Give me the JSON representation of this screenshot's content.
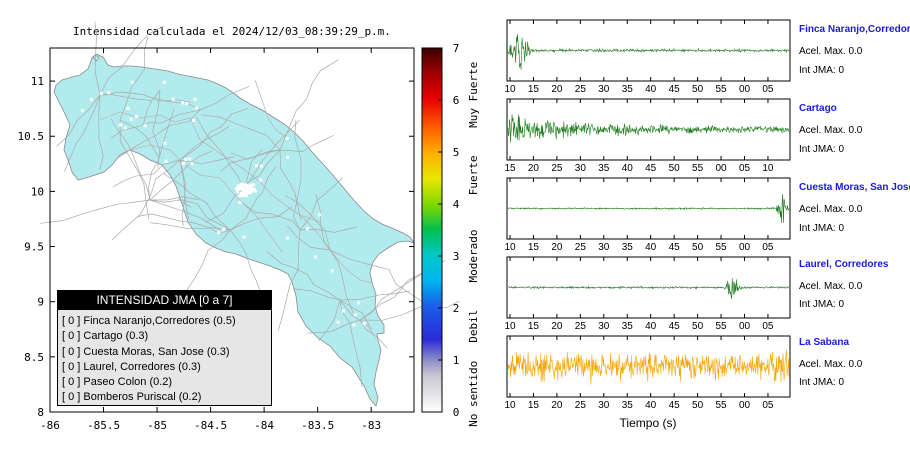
{
  "map": {
    "title": "Intensidad calculada el 2024/12/03_08:39:29_p.m.",
    "x_ticks": [
      "-86",
      "-85.5",
      "-85",
      "-84.5",
      "-84",
      "-83.5",
      "-83"
    ],
    "y_ticks": [
      "8",
      "8.5",
      "9",
      "9.5",
      "10",
      "10.5",
      "11"
    ],
    "land_color": "#b2ebed",
    "colorbar": {
      "ticks": [
        "0",
        "1",
        "2",
        "3",
        "4",
        "5",
        "6",
        "7"
      ],
      "categories": [
        "No sentido",
        "Debil",
        "Moderado",
        "Fuerte",
        "Muy Fuerte"
      ]
    }
  },
  "legend": {
    "title": "INTENSIDAD JMA [0 a 7]",
    "items": [
      "[ 0 ]  Finca Naranjo,Corredores (0.5)",
      "[ 0 ]  Cartago (0.3)",
      "[ 0 ]  Cuesta Moras, San Jose (0.3)",
      "[ 0 ]  Laurel, Corredores (0.3)",
      "[ 0 ]  Paseo Colon (0.2)",
      "[ 0 ]  Bomberos Puriscal (0.2)"
    ]
  },
  "stations": [
    {
      "name": "Finca Naranjo,Corredores",
      "accel": "Acel. Max. 0.0",
      "jma": "Int JMA: 0",
      "ticks": [
        "10",
        "15",
        "20",
        "25",
        "30",
        "35",
        "40",
        "45",
        "50",
        "55",
        "00",
        "05"
      ],
      "color": "#1a7a1a"
    },
    {
      "name": "Cartago",
      "accel": "Acel. Max. 0.0",
      "jma": "Int JMA: 0",
      "ticks": [
        "15",
        "20",
        "25",
        "30",
        "35",
        "40",
        "45",
        "50",
        "55",
        "00",
        "05",
        "10"
      ],
      "color": "#1a7a1a"
    },
    {
      "name": "Cuesta Moras, San Jose",
      "accel": "Acel. Max. 0.0",
      "jma": "Int JMA: 0",
      "ticks": [
        "10",
        "15",
        "20",
        "25",
        "30",
        "35",
        "40",
        "45",
        "50",
        "55",
        "00",
        "05"
      ],
      "color": "#1a7a1a"
    },
    {
      "name": "Laurel, Corredores",
      "accel": "Acel. Max. 0.0",
      "jma": "Int JMA: 0",
      "ticks": [
        "10",
        "15",
        "20",
        "25",
        "30",
        "35",
        "40",
        "45",
        "50",
        "55",
        "00",
        "05"
      ],
      "color": "#1a7a1a"
    },
    {
      "name": "La Sabana",
      "accel": "Acel. Max. 0.0",
      "jma": "Int JMA: 0",
      "ticks": [
        "10",
        "15",
        "20",
        "25",
        "30",
        "35",
        "40",
        "45",
        "50",
        "55",
        "00",
        "05"
      ],
      "color": "#f5a300"
    }
  ],
  "time_label": "Tiempo (s)",
  "chart_data": [
    {
      "type": "heatmap",
      "title": "Intensidad calculada el 2024/12/03_08:39:29_p.m.",
      "xlim": [
        -86,
        -82.6
      ],
      "ylim": [
        8,
        11.3
      ],
      "colorbar_range": [
        0,
        7
      ],
      "legend_title": "INTENSIDAD JMA [0 a 7]",
      "legend": [
        "Finca Naranjo,Corredores (0.5)",
        "Cartago (0.3)",
        "Cuesta Moras, San Jose (0.3)",
        "Laurel, Corredores (0.3)",
        "Paseo Colon (0.2)",
        "Bomberos Puriscal (0.2)"
      ]
    },
    {
      "type": "line",
      "panels": [
        "Finca Naranjo,Corredores",
        "Cartago",
        "Cuesta Moras, San Jose",
        "Laurel, Corredores",
        "La Sabana"
      ],
      "xlabel": "Tiempo (s)",
      "acel_max": [
        0.0,
        0.0,
        0.0,
        0.0,
        0.0
      ],
      "int_jma": [
        0,
        0,
        0,
        0,
        0
      ]
    }
  ]
}
